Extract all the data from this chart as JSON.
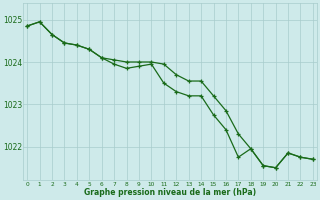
{
  "series1_x": [
    0,
    1,
    2,
    3,
    4,
    5,
    6,
    7,
    8,
    9,
    10,
    11,
    12,
    13,
    14,
    15,
    16,
    17,
    18,
    19,
    20,
    21,
    22,
    23
  ],
  "series1_y": [
    1024.85,
    1024.95,
    1024.65,
    1024.45,
    1024.4,
    1024.3,
    1024.1,
    1023.95,
    1023.85,
    1023.9,
    1023.95,
    1023.5,
    1023.3,
    1023.2,
    1023.2,
    1022.75,
    1022.4,
    1021.75,
    1021.95,
    1021.55,
    1021.5,
    1021.85,
    1021.75,
    1021.7
  ],
  "series2_x": [
    0,
    1,
    2,
    3,
    4,
    5,
    6,
    7,
    8,
    9,
    10,
    11,
    12,
    13,
    14,
    15,
    16,
    17,
    18,
    19,
    20,
    21,
    22,
    23
  ],
  "series2_y": [
    1024.85,
    1024.95,
    1024.65,
    1024.45,
    1024.4,
    1024.3,
    1024.1,
    1024.05,
    1024.0,
    1024.0,
    1024.0,
    1023.95,
    1023.7,
    1023.55,
    1023.55,
    1023.2,
    1022.85,
    1022.3,
    1021.95,
    1021.55,
    1021.5,
    1021.85,
    1021.75,
    1021.7
  ],
  "line_color": "#1a6b1a",
  "bg_color": "#ceeaea",
  "grid_color": "#a8cccc",
  "ylabel_ticks": [
    1022,
    1023,
    1024,
    1025
  ],
  "xlabel": "Graphe pression niveau de la mer (hPa)",
  "ylim": [
    1021.2,
    1025.4
  ],
  "xlim": [
    -0.3,
    23.3
  ]
}
